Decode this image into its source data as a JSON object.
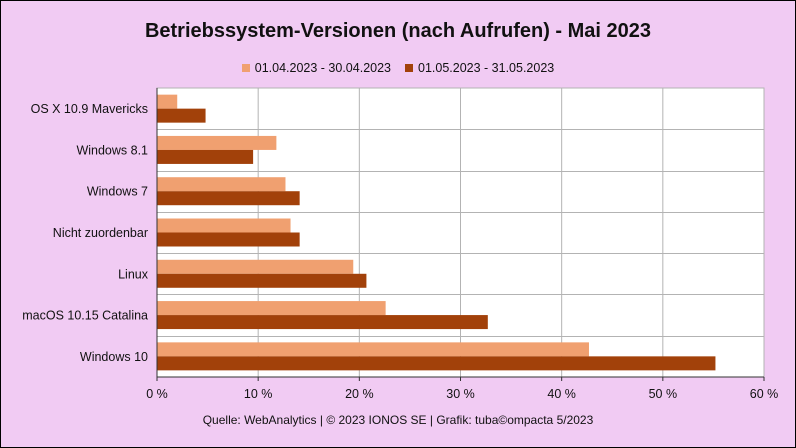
{
  "chart_data": {
    "type": "bar",
    "orientation": "horizontal",
    "title": "Betriebssystem-Versionen (nach Aufrufen) - Mai 2023",
    "categories": [
      "OS X 10.9 Mavericks",
      "Windows 8.1",
      "Windows 7",
      "Nicht zuordenbar",
      "Linux",
      "macOS 10.15 Catalina",
      "Windows 10"
    ],
    "series": [
      {
        "name": "01.04.2023 - 30.04.2023",
        "color": "#f0a070",
        "values": [
          2.0,
          11.8,
          12.7,
          13.2,
          19.4,
          22.6,
          42.7
        ]
      },
      {
        "name": "01.05.2023 - 31.05.2023",
        "color": "#a2410a",
        "values": [
          4.8,
          9.5,
          14.1,
          14.1,
          20.7,
          32.7,
          55.2
        ]
      }
    ],
    "xlim": [
      0,
      60
    ],
    "xticks": [
      0,
      10,
      20,
      30,
      40,
      50,
      60
    ],
    "xtick_labels": [
      "0 %",
      "10 %",
      "20 %",
      "30 %",
      "40 %",
      "50 %",
      "60 %"
    ],
    "grid": true,
    "legend_position": "top-center",
    "source": "Quelle: WebAnalytics | © 2023 IONOS SE | Grafik: tuba©ompacta 5/2023"
  }
}
